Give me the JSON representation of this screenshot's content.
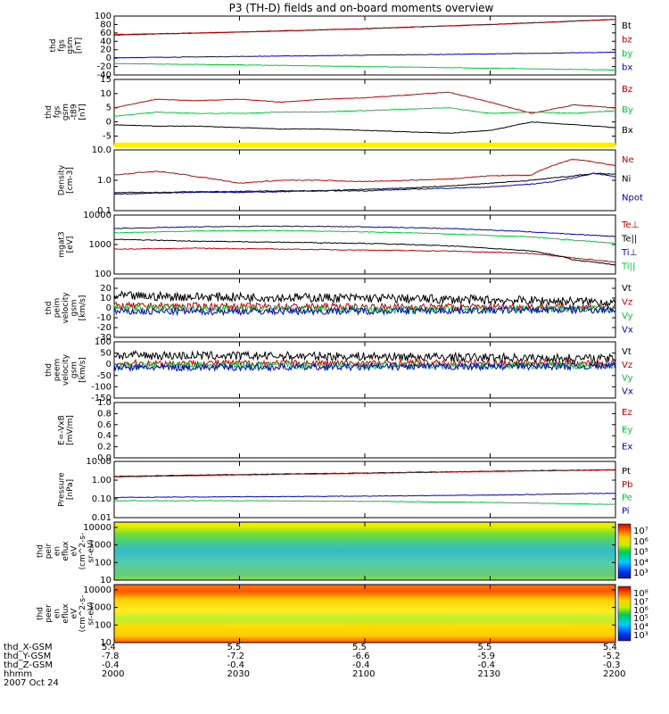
{
  "title": "P3 (TH-D) fields and on-board moments overview",
  "colors": {
    "black": "#000000",
    "red": "#cc0000",
    "green": "#00cc33",
    "blue": "#0000cc",
    "yellow": "#ffee00"
  },
  "x_axis": {
    "tick_times": [
      "2000",
      "2030",
      "2100",
      "2130",
      "2200"
    ],
    "ephemeris": [
      {
        "label": "thd_X-GSM",
        "values": [
          "5.4",
          "5.5",
          "5.5",
          "5.5",
          "5.4"
        ]
      },
      {
        "label": "thd_Y-GSM",
        "values": [
          "-7.8",
          "-7.2",
          "-6.6",
          "-5.9",
          "-5.2"
        ]
      },
      {
        "label": "thd_Z-GSM",
        "values": [
          "-0.4",
          "-0.4",
          "-0.4",
          "-0.4",
          "-0.3"
        ]
      },
      {
        "label": "hhmm",
        "values": [
          "2000",
          "2030",
          "2100",
          "2130",
          "2200"
        ]
      }
    ],
    "date": "2007 Oct 24"
  },
  "chart_data": [
    {
      "type": "line",
      "name": "fgs-gsm",
      "ylabel": [
        "thd",
        "fgs",
        "gsm",
        "[nT]"
      ],
      "ylim": [
        -40,
        100
      ],
      "yticks": [
        "100",
        "80",
        "60",
        "40",
        "20",
        "0",
        "-20",
        "-40"
      ],
      "x": [
        0,
        30,
        60,
        90,
        120
      ],
      "series": [
        {
          "name": "Bt",
          "color": "black",
          "values": [
            55,
            62,
            70,
            80,
            92
          ]
        },
        {
          "name": "bz",
          "color": "red",
          "values": [
            56,
            62,
            70,
            80,
            92
          ]
        },
        {
          "name": "by",
          "color": "green",
          "values": [
            -13,
            -16,
            -20,
            -24,
            -28
          ]
        },
        {
          "name": "bx",
          "color": "blue",
          "values": [
            1,
            4,
            7,
            10,
            14
          ]
        }
      ]
    },
    {
      "type": "line",
      "name": "fgs-gsm-t89",
      "ylabel": [
        "thd",
        "fgs",
        "gsm",
        "-t89",
        "[nT]"
      ],
      "ylim": [
        -8,
        15
      ],
      "yticks": [
        "15",
        "10",
        "5",
        "0",
        "-5"
      ],
      "x": [
        0,
        10,
        20,
        30,
        40,
        50,
        60,
        70,
        80,
        90,
        100,
        110,
        120
      ],
      "series": [
        {
          "name": "Bz",
          "color": "red",
          "values": [
            5,
            8,
            7.5,
            8,
            7,
            8,
            8.5,
            9.5,
            10.5,
            7,
            3,
            6,
            5
          ]
        },
        {
          "name": "By",
          "color": "green",
          "values": [
            2,
            3.5,
            3,
            3,
            3.5,
            3.5,
            4,
            4.5,
            5,
            3,
            3.5,
            3,
            4
          ]
        },
        {
          "name": "Bx",
          "color": "black",
          "values": [
            -1,
            -1.5,
            -1.5,
            -2,
            -2.5,
            -2.5,
            -3,
            -3.5,
            -4,
            -3,
            0,
            -1,
            -2
          ]
        }
      ]
    },
    {
      "type": "line",
      "name": "density",
      "log": true,
      "ylabel": [
        "Density",
        "[cm-3]"
      ],
      "ylim": [
        0.1,
        10
      ],
      "yticks": [
        "10.0",
        "1.0",
        "0.1"
      ],
      "x": [
        0,
        10,
        20,
        30,
        40,
        50,
        60,
        70,
        80,
        90,
        100,
        105,
        110,
        115,
        120
      ],
      "series": [
        {
          "name": "Ne",
          "color": "red",
          "values": [
            1.5,
            2,
            1.3,
            0.8,
            1.0,
            1.0,
            0.9,
            1.0,
            1.1,
            1.4,
            1.5,
            3,
            5,
            4,
            3
          ]
        },
        {
          "name": "Ni",
          "color": "black",
          "values": [
            0.35,
            0.38,
            0.4,
            0.4,
            0.42,
            0.45,
            0.5,
            0.55,
            0.65,
            0.8,
            1.0,
            1.2,
            1.4,
            1.7,
            1.6
          ]
        },
        {
          "name": "Npot",
          "color": "blue",
          "values": [
            0.4,
            0.4,
            0.42,
            0.43,
            0.45,
            0.45,
            0.45,
            0.5,
            0.55,
            0.6,
            0.75,
            0.9,
            1.2,
            1.7,
            1.3
          ]
        }
      ]
    },
    {
      "type": "line",
      "name": "temperature",
      "log": true,
      "ylabel": [
        "mgat3",
        "[eV]"
      ],
      "ylim": [
        100,
        10000
      ],
      "yticks": [
        "10000",
        "1000",
        "100"
      ],
      "x": [
        0,
        20,
        40,
        60,
        80,
        100,
        110,
        120
      ],
      "series": [
        {
          "name": "Te⊥",
          "color": "red",
          "values": [
            700,
            750,
            700,
            650,
            600,
            500,
            350,
            250
          ]
        },
        {
          "name": "Te||",
          "color": "black",
          "values": [
            1500,
            1300,
            1200,
            1100,
            900,
            600,
            300,
            200
          ]
        },
        {
          "name": "Ti⊥",
          "color": "blue",
          "values": [
            3500,
            4000,
            4200,
            4000,
            3500,
            2700,
            2200,
            1900
          ]
        },
        {
          "name": "Ti||",
          "color": "green",
          "values": [
            2500,
            2900,
            3000,
            2700,
            2300,
            1800,
            1400,
            1100
          ]
        }
      ]
    },
    {
      "type": "line",
      "name": "peim-velocity",
      "noisy": true,
      "ylabel": [
        "thd",
        "peim",
        "velocity",
        "gsm",
        "[km/s]"
      ],
      "ylim": [
        -30,
        30
      ],
      "yticks": [
        "20",
        "10",
        "0",
        "-10",
        "-20",
        "-30"
      ],
      "x": [
        0,
        60,
        120
      ],
      "series": [
        {
          "name": "Vt",
          "color": "black",
          "values": [
            12,
            10,
            6
          ]
        },
        {
          "name": "Vz",
          "color": "red",
          "values": [
            2,
            1,
            1
          ]
        },
        {
          "name": "Vy",
          "color": "green",
          "values": [
            0,
            -2,
            -1
          ]
        },
        {
          "name": "Vx",
          "color": "blue",
          "values": [
            -4,
            -3,
            -2
          ]
        }
      ]
    },
    {
      "type": "line",
      "name": "peem-velocity",
      "noisy": true,
      "ylabel": [
        "thd",
        "peem",
        "velocity",
        "gsm",
        "[km/s]"
      ],
      "ylim": [
        -150,
        100
      ],
      "yticks": [
        "100",
        "50",
        "0",
        "-50",
        "-100",
        "-150"
      ],
      "x": [
        0,
        60,
        120
      ],
      "series": [
        {
          "name": "Vt",
          "color": "black",
          "values": [
            40,
            35,
            25
          ]
        },
        {
          "name": "Vz",
          "color": "red",
          "values": [
            5,
            5,
            5
          ]
        },
        {
          "name": "Vy",
          "color": "green",
          "values": [
            -5,
            -5,
            -5
          ]
        },
        {
          "name": "Vx",
          "color": "blue",
          "values": [
            -15,
            -12,
            -8
          ]
        }
      ]
    },
    {
      "type": "line",
      "name": "e-vxb",
      "ylabel": [
        "E=-VxB",
        "[mV/m]"
      ],
      "ylim": [
        0,
        1
      ],
      "yticks": [
        "1.0",
        "0.8",
        "0.6",
        "0.4",
        "0.2",
        "0.0"
      ],
      "x": [],
      "series": [
        {
          "name": "Ez",
          "color": "red",
          "values": []
        },
        {
          "name": "Ey",
          "color": "green",
          "values": []
        },
        {
          "name": "Ex",
          "color": "blue",
          "values": []
        }
      ]
    },
    {
      "type": "line",
      "name": "pressure",
      "log": true,
      "ylabel": [
        "Pressure",
        "[nPa]"
      ],
      "ylim": [
        0.01,
        10
      ],
      "yticks": [
        "10.00",
        "1.00",
        "0.10",
        "0.01"
      ],
      "x": [
        0,
        30,
        60,
        90,
        120
      ],
      "series": [
        {
          "name": "Pt",
          "color": "black",
          "values": [
            1.6,
            2.0,
            2.4,
            3.0,
            3.6
          ]
        },
        {
          "name": "Pb",
          "color": "red",
          "values": [
            1.5,
            1.9,
            2.3,
            2.9,
            3.5
          ]
        },
        {
          "name": "Pe",
          "color": "green",
          "values": [
            0.08,
            0.08,
            0.075,
            0.065,
            0.05
          ]
        },
        {
          "name": "Pi",
          "color": "blue",
          "values": [
            0.12,
            0.13,
            0.14,
            0.16,
            0.2
          ]
        }
      ]
    },
    {
      "type": "heatmap",
      "name": "peir-en-eflux",
      "log": true,
      "ylabel": [
        "thd",
        "peir",
        "en",
        "eflux",
        "eV",
        "(cm^2-s-",
        "sr-eV)"
      ],
      "ylim": [
        10,
        20000
      ],
      "yticks": [
        "10000",
        "1000",
        "100",
        "10"
      ],
      "colorbar_ticks": [
        "10⁷",
        "10⁶",
        "10⁵",
        "10⁴",
        "10³"
      ]
    },
    {
      "type": "heatmap",
      "name": "peer-en-eflux",
      "log": true,
      "ylabel": [
        "thd",
        "peer",
        "en",
        "eflux",
        "eV",
        "(cm^2-s-",
        "sr-eV)"
      ],
      "ylim": [
        10,
        20000
      ],
      "yticks": [
        "10000",
        "1000",
        "100",
        "10"
      ],
      "colorbar_ticks": [
        "10⁸",
        "10⁷",
        "10⁶",
        "10⁵",
        "10⁴",
        "10³"
      ]
    }
  ]
}
